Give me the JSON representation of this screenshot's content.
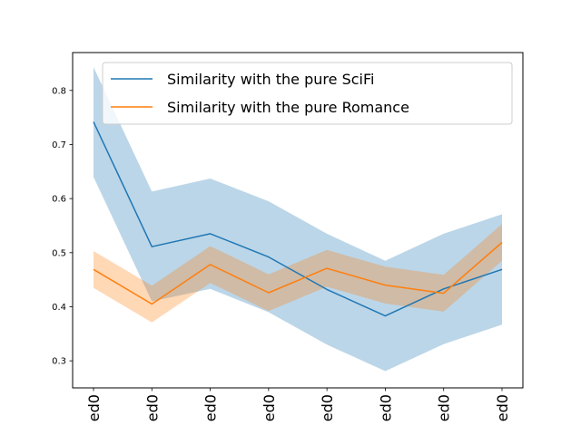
{
  "chart_data": {
    "type": "line",
    "title": "",
    "xlabel": "",
    "ylabel": "",
    "categories": [
      "ed0",
      "ed0",
      "ed0",
      "ed0",
      "ed0",
      "ed0",
      "ed0",
      "ed0"
    ],
    "ylim": [
      0.25,
      0.87
    ],
    "yticks": [
      0.3,
      0.4,
      0.5,
      0.6,
      0.7,
      0.8
    ],
    "ytick_labels": [
      "0.3",
      "0.4",
      "0.5",
      "0.6",
      "0.7",
      "0.8"
    ],
    "grid": false,
    "legend_position": "top-right",
    "series": [
      {
        "name": "Similarity with the pure SciFi",
        "color": "#1f77b4",
        "values": [
          0.742,
          0.511,
          0.535,
          0.492,
          0.432,
          0.383,
          0.433,
          0.469
        ],
        "band_upper": [
          0.843,
          0.613,
          0.637,
          0.595,
          0.535,
          0.485,
          0.535,
          0.571
        ],
        "band_lower": [
          0.64,
          0.41,
          0.433,
          0.39,
          0.33,
          0.281,
          0.331,
          0.367
        ]
      },
      {
        "name": "Similarity with the pure Romance",
        "color": "#ff7f0e",
        "values": [
          0.469,
          0.405,
          0.478,
          0.426,
          0.471,
          0.44,
          0.425,
          0.519
        ],
        "band_upper": [
          0.503,
          0.439,
          0.512,
          0.46,
          0.505,
          0.474,
          0.459,
          0.553
        ],
        "band_lower": [
          0.435,
          0.371,
          0.444,
          0.392,
          0.437,
          0.406,
          0.391,
          0.485
        ]
      }
    ]
  }
}
